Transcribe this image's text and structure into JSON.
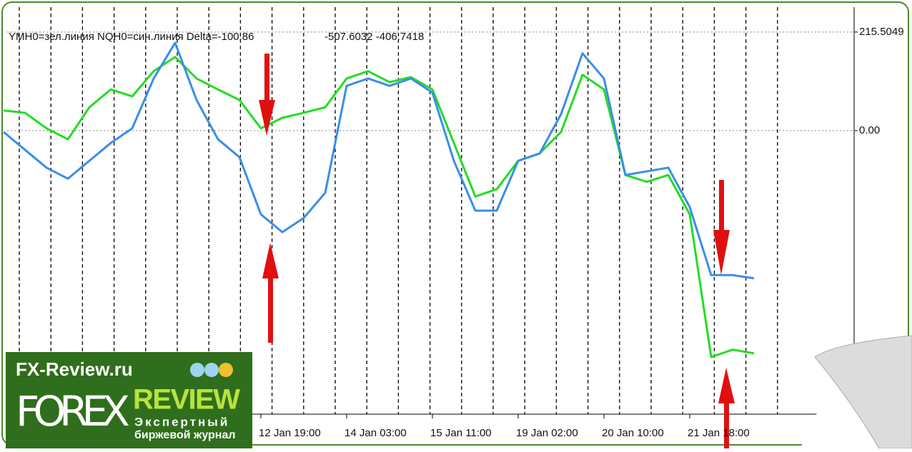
{
  "chart_data": {
    "type": "line",
    "title": "YMH0=зел.линия NQH0=син.линия Delta=-100.86",
    "subtitle": "-507.6032 -406.7418",
    "categories": [
      null,
      null,
      null,
      null,
      null,
      null,
      null,
      null,
      null,
      null,
      null,
      null,
      "12 Jan 19:00",
      null,
      null,
      null,
      "14 Jan 03:00",
      null,
      null,
      null,
      "15 Jan 11:00",
      null,
      null,
      null,
      "19 Jan 02:00",
      null,
      null,
      null,
      "20 Jan 10:00",
      null,
      null,
      null,
      "21 Jan 18:00",
      null,
      null,
      null
    ],
    "series": [
      {
        "name": "YMH0",
        "color": "#22dd22",
        "values": [
          44,
          39,
          5,
          -19,
          51,
          90,
          75,
          130,
          161,
          114,
          90,
          67,
          5,
          28,
          39,
          51,
          114,
          130,
          106,
          117,
          90,
          -27,
          -144,
          -128,
          -66,
          -50,
          -3,
          122,
          90,
          -97,
          -112,
          -97,
          -183,
          -495,
          -479,
          -487
        ]
      },
      {
        "name": "NQH0",
        "color": "#3a8ee6",
        "values": [
          -3,
          -42,
          -81,
          -105,
          -66,
          -27,
          5,
          114,
          192,
          67,
          -19,
          -58,
          -183,
          -222,
          -191,
          -136,
          98,
          114,
          98,
          114,
          83,
          -66,
          -175,
          -175,
          -66,
          -50,
          36,
          169,
          114,
          -97,
          -89,
          -81,
          -167,
          -316,
          -316,
          -323
        ]
      }
    ],
    "ylim": [
      -620,
      270
    ],
    "yticks": [
      {
        "value": 215.5049,
        "label": "215.5049"
      },
      {
        "value": 0,
        "label": "0.00"
      }
    ],
    "grid": true
  },
  "watermark": {
    "site": "FX-Review.ru",
    "brand": "FOREX",
    "brand2": "REVIEW",
    "tagline1": "Экспертный",
    "tagline2": "биржевой журнал"
  }
}
